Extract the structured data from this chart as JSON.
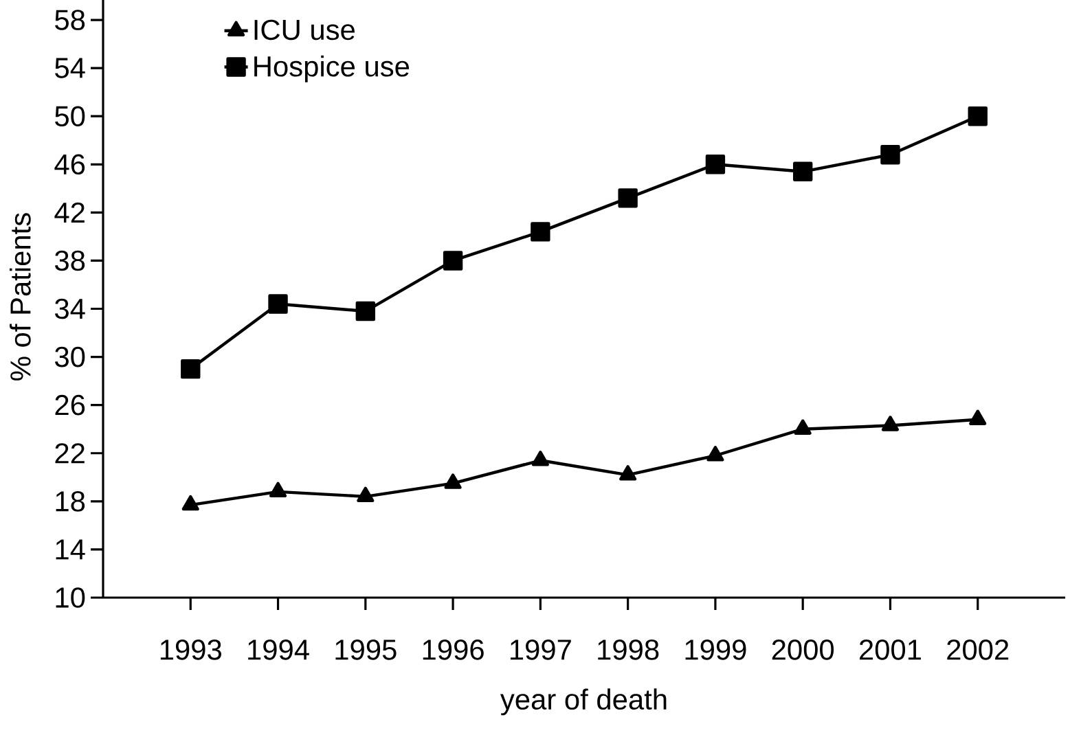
{
  "chart_data": {
    "type": "line",
    "xlabel": "year of death",
    "ylabel": "% of Patients",
    "categories": [
      "1993",
      "1994",
      "1995",
      "1996",
      "1997",
      "1998",
      "1999",
      "2000",
      "2001",
      "2002"
    ],
    "series": [
      {
        "name": "ICU use",
        "color": "#000000",
        "marker": "triangle",
        "values": [
          17.7,
          18.8,
          18.4,
          19.5,
          21.4,
          20.2,
          21.8,
          24.0,
          24.3,
          24.8
        ]
      },
      {
        "name": "Hospice use",
        "color": "#000000",
        "marker": "square",
        "values": [
          29.0,
          34.4,
          33.8,
          38.0,
          40.4,
          43.2,
          46.0,
          45.4,
          46.8,
          50.0
        ]
      }
    ],
    "ylim": [
      10,
      60
    ],
    "yticks": [
      10,
      14,
      18,
      22,
      26,
      30,
      34,
      38,
      42,
      46,
      50,
      54,
      58
    ],
    "grid": false,
    "legend": "top left",
    "line_style": "solid"
  }
}
